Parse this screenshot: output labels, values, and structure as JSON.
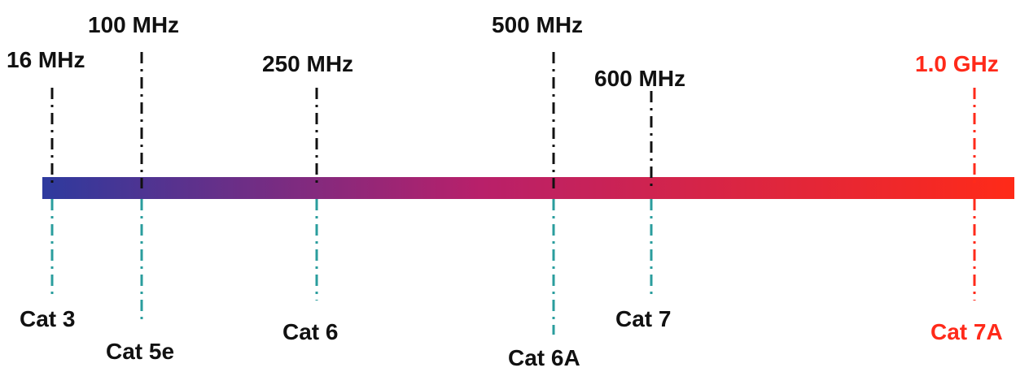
{
  "colors": {
    "freq_line": "#111111",
    "cat_line": "#2a9d9d",
    "highlight": "#ff2a1a",
    "bar_start": "#2e3a9e",
    "bar_mid": "#b8206a",
    "bar_end": "#ff2a18",
    "text": "#111111"
  },
  "markers": [
    {
      "id": "cat3",
      "frequency": "16 MHz",
      "category": "Cat 3",
      "highlight": false
    },
    {
      "id": "cat5e",
      "frequency": "100 MHz",
      "category": "Cat 5e",
      "highlight": false
    },
    {
      "id": "cat6",
      "frequency": "250 MHz",
      "category": "Cat 6",
      "highlight": false
    },
    {
      "id": "cat6a",
      "frequency": "500 MHz",
      "category": "Cat 6A",
      "highlight": false
    },
    {
      "id": "cat7",
      "frequency": "600 MHz",
      "category": "Cat 7",
      "highlight": false
    },
    {
      "id": "cat7a",
      "frequency": "1.0 GHz",
      "category": "Cat 7A",
      "highlight": true
    }
  ]
}
